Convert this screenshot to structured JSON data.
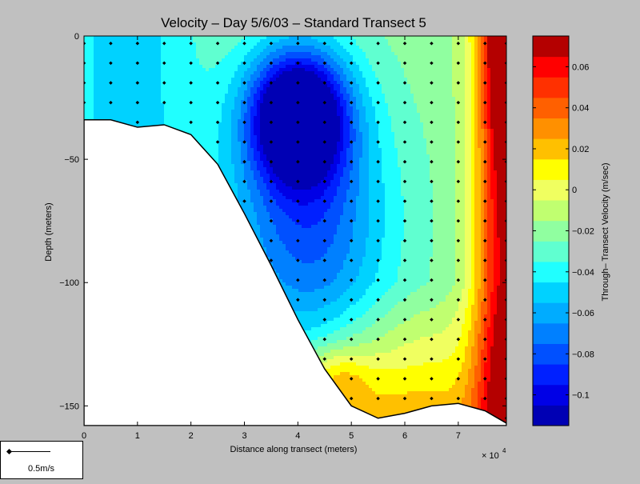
{
  "chart_data": {
    "type": "heatmap",
    "title": "Velocity – Day 5/6/03 – Standard Transect 5",
    "xlabel": "Distance along transect (meters)",
    "ylabel": "Depth (meters)",
    "x_multiplier_label": "× 10",
    "x_multiplier_exponent": "4",
    "xlim": [
      0,
      79000
    ],
    "ylim": [
      -158,
      0
    ],
    "x_ticks": [
      0,
      10000,
      20000,
      30000,
      40000,
      50000,
      60000,
      70000
    ],
    "x_tick_labels": [
      "0",
      "1",
      "2",
      "3",
      "4",
      "5",
      "6",
      "7"
    ],
    "y_ticks": [
      0,
      -50,
      -100,
      -150
    ],
    "y_tick_labels": [
      "0",
      "−50",
      "−100",
      "−150"
    ],
    "colorbar": {
      "label": "Through– Transect Velocity (m/sec)",
      "range": [
        -0.115,
        0.075
      ],
      "ticks": [
        0.06,
        0.04,
        0.02,
        0,
        -0.02,
        -0.04,
        -0.06,
        -0.08,
        -0.1
      ],
      "tick_labels": [
        "0.06",
        "0.04",
        "0.02",
        "0",
        "−0.02",
        "−0.04",
        "−0.06",
        "−0.08",
        "−0.1"
      ],
      "levels": [
        {
          "from": -0.115,
          "to": -0.105,
          "color": "#0000b4"
        },
        {
          "from": -0.105,
          "to": -0.095,
          "color": "#0000e6"
        },
        {
          "from": -0.095,
          "to": -0.085,
          "color": "#0020ff"
        },
        {
          "from": -0.085,
          "to": -0.075,
          "color": "#0050ff"
        },
        {
          "from": -0.075,
          "to": -0.065,
          "color": "#0080ff"
        },
        {
          "from": -0.065,
          "to": -0.055,
          "color": "#00acff"
        },
        {
          "from": -0.055,
          "to": -0.045,
          "color": "#00d2ff"
        },
        {
          "from": -0.045,
          "to": -0.035,
          "color": "#20ffff"
        },
        {
          "from": -0.035,
          "to": -0.025,
          "color": "#60ffd0"
        },
        {
          "from": -0.025,
          "to": -0.015,
          "color": "#90ffa0"
        },
        {
          "from": -0.015,
          "to": -0.005,
          "color": "#c0ff70"
        },
        {
          "from": -0.005,
          "to": 0.005,
          "color": "#f0ff60"
        },
        {
          "from": 0.005,
          "to": 0.015,
          "color": "#ffff00"
        },
        {
          "from": 0.015,
          "to": 0.025,
          "color": "#ffc000"
        },
        {
          "from": 0.025,
          "to": 0.035,
          "color": "#ff9000"
        },
        {
          "from": 0.035,
          "to": 0.045,
          "color": "#ff6000"
        },
        {
          "from": 0.045,
          "to": 0.055,
          "color": "#ff3000"
        },
        {
          "from": 0.055,
          "to": 0.065,
          "color": "#ff0000"
        },
        {
          "from": 0.065,
          "to": 0.075,
          "color": "#b40000"
        }
      ]
    },
    "bottom_profile": {
      "x": [
        0,
        5000,
        10000,
        15000,
        20000,
        25000,
        30000,
        35000,
        40000,
        45000,
        50000,
        55000,
        60000,
        65000,
        70000,
        75000,
        79000
      ],
      "depth": [
        -34,
        -34,
        -37,
        -36,
        -40,
        -52,
        -72,
        -93,
        -115,
        -135,
        -150,
        -155,
        -153,
        -150,
        -149,
        -152,
        -157
      ]
    },
    "station_x": [
      0,
      5000,
      10000,
      15000,
      20000,
      25000,
      30000,
      35000,
      40000,
      45000,
      50000,
      55000,
      60000,
      65000,
      70000,
      75000,
      79000
    ],
    "grid": false
  },
  "scale_legend": {
    "label": "0.5m/s"
  }
}
